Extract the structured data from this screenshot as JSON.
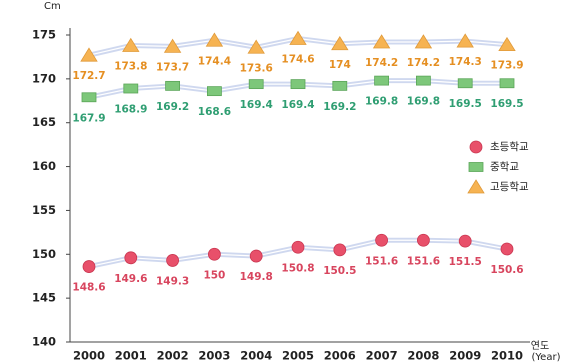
{
  "chart_data": {
    "type": "line",
    "unit_label": "Cm",
    "xlabel": "연도",
    "xlabel_sub": "(Year)",
    "categories": [
      "2000",
      "2001",
      "2002",
      "2003",
      "2004",
      "2005",
      "2006",
      "2007",
      "2008",
      "2009",
      "2010"
    ],
    "series": [
      {
        "name": "초등학교",
        "color": "#e8506a",
        "label_color": "#d8455e",
        "marker": "circle",
        "values": [
          148.6,
          149.6,
          149.3,
          150,
          149.8,
          150.8,
          150.5,
          151.6,
          151.6,
          151.5,
          150.6
        ]
      },
      {
        "name": "중학교",
        "color": "#7dc77a",
        "label_color": "#2f9e72",
        "marker": "square",
        "values": [
          167.9,
          168.9,
          169.2,
          168.6,
          169.4,
          169.4,
          169.2,
          169.8,
          169.8,
          169.5,
          169.5
        ]
      },
      {
        "name": "고등학교",
        "color": "#f6b352",
        "label_color": "#e58f22",
        "marker": "triangle",
        "values": [
          172.7,
          173.8,
          173.7,
          174.4,
          173.6,
          174.6,
          174,
          174.2,
          174.2,
          174.3,
          173.9
        ]
      }
    ],
    "line_color": "#a8b8e2",
    "ylim": [
      140,
      175
    ],
    "yticks": [
      140,
      145,
      150,
      155,
      160,
      165,
      170,
      175
    ],
    "legend": "right"
  }
}
